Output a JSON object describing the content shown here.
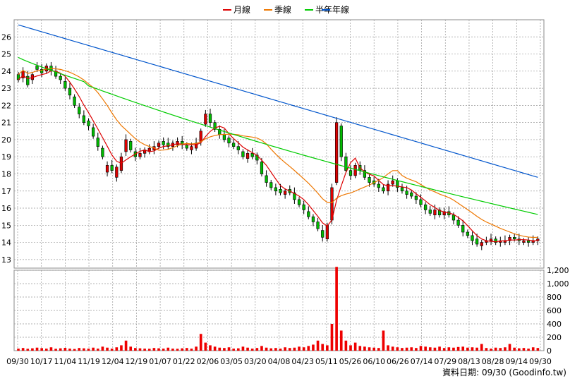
{
  "legend": {
    "items": [
      {
        "label": "月線",
        "color": "#dd0000"
      },
      {
        "label": "季線",
        "color": "#ee7700"
      },
      {
        "label": "半年",
        "color": "#00cc00"
      },
      {
        "label": "年線",
        "color": "#0055cc"
      }
    ]
  },
  "source_label": "資料日期: 09/30  (Goodinfo.tw)",
  "chart_data": {
    "type": "candlestick+volume",
    "x_labels": [
      "09/30",
      "10/17",
      "11/04",
      "11/19",
      "12/04",
      "12/19",
      "01/07",
      "01/22",
      "02/06",
      "03/05",
      "03/20",
      "04/08",
      "04/23",
      "05/11",
      "05/26",
      "06/10",
      "06/26",
      "07/14",
      "07/29",
      "08/13",
      "08/28",
      "09/14",
      "09/30"
    ],
    "price_ticks": [
      13,
      14,
      15,
      16,
      17,
      18,
      19,
      20,
      21,
      22,
      23,
      24,
      25,
      26
    ],
    "price_range": [
      12.5,
      27.0
    ],
    "volume_ticks": [
      "0",
      "200",
      "400",
      "600",
      "800",
      "1,000",
      "1,200"
    ],
    "volume_range": [
      0,
      1200
    ],
    "close": [
      23.5,
      24.0,
      23.2,
      23.8,
      24.1,
      23.9,
      24.3,
      24.0,
      23.7,
      23.5,
      23.0,
      22.6,
      22.0,
      21.5,
      21.0,
      20.8,
      20.2,
      19.6,
      19.0,
      18.5,
      18.2,
      18.4,
      19.0,
      20.0,
      19.4,
      19.0,
      19.2,
      19.4,
      19.5,
      19.6,
      19.8,
      19.7,
      19.6,
      19.8,
      19.9,
      19.7,
      19.5,
      19.6,
      19.8,
      20.5,
      21.5,
      21.0,
      20.6,
      20.3,
      20.0,
      19.8,
      19.6,
      19.4,
      19.0,
      19.2,
      19.0,
      18.8,
      18.0,
      17.5,
      17.2,
      17.0,
      16.9,
      17.0,
      16.9,
      16.5,
      16.2,
      15.9,
      15.5,
      15.2,
      14.8,
      14.3,
      15.0,
      17.2,
      21.0,
      19.0,
      18.2,
      17.9,
      18.5,
      18.2,
      17.8,
      17.5,
      17.4,
      17.2,
      17.0,
      17.4,
      17.6,
      17.2,
      17.0,
      16.8,
      16.7,
      16.5,
      16.2,
      15.9,
      15.7,
      15.9,
      15.6,
      15.8,
      15.6,
      15.3,
      15.0,
      14.6,
      14.4,
      14.1,
      13.9,
      14.0,
      14.1,
      14.2,
      14.0,
      14.1,
      14.1,
      14.3,
      14.2,
      14.1,
      14.1,
      14.0,
      14.1,
      14.2
    ],
    "open_offset": [
      0.3,
      -0.4,
      0.5,
      -0.3,
      0.2,
      0.2,
      -0.3,
      0.3,
      0.3,
      0.2,
      0.4,
      0.4,
      0.5,
      0.4,
      0.4,
      0.3,
      0.5,
      0.5,
      0.5,
      -0.4,
      0.3,
      -0.6,
      -0.8,
      -0.7,
      0.5,
      0.3,
      -0.2,
      -0.2,
      -0.2,
      -0.2,
      -0.2,
      0.2,
      0.2,
      -0.2,
      -0.2,
      0.2,
      0.2,
      -0.2,
      -0.3,
      -0.6,
      -0.6,
      0.5,
      0.4,
      0.3,
      0.3,
      0.3,
      0.2,
      0.2,
      0.3,
      -0.3,
      0.2,
      0.3,
      0.7,
      0.4,
      0.3,
      0.2,
      0.2,
      -0.2,
      0.2,
      0.4,
      0.3,
      0.3,
      0.3,
      0.3,
      0.4,
      0.4,
      -0.8,
      -1.9,
      -3.5,
      1.8,
      0.8,
      0.3,
      -0.6,
      0.3,
      0.4,
      0.3,
      0.2,
      0.2,
      0.2,
      -0.4,
      -0.2,
      0.4,
      0.2,
      0.2,
      0.2,
      0.2,
      0.3,
      0.3,
      0.2,
      -0.3,
      0.3,
      -0.2,
      0.2,
      0.3,
      0.3,
      0.4,
      0.2,
      0.3,
      0.3,
      -0.2,
      -0.1,
      -0.1,
      0.2,
      -0.1,
      -0.1,
      -0.2,
      0.1,
      0.1,
      -0.1,
      0.1,
      -0.1,
      -0.1
    ],
    "volume": [
      30,
      40,
      28,
      35,
      45,
      38,
      30,
      50,
      28,
      35,
      42,
      30,
      25,
      40,
      35,
      30,
      45,
      30,
      60,
      45,
      30,
      50,
      80,
      150,
      60,
      40,
      35,
      30,
      28,
      40,
      35,
      30,
      45,
      30,
      28,
      35,
      40,
      30,
      60,
      250,
      120,
      80,
      60,
      45,
      40,
      50,
      30,
      35,
      60,
      45,
      30,
      40,
      70,
      45,
      35,
      40,
      30,
      50,
      40,
      45,
      60,
      50,
      70,
      90,
      150,
      100,
      80,
      400,
      1250,
      300,
      150,
      80,
      120,
      70,
      60,
      50,
      45,
      40,
      300,
      80,
      60,
      50,
      40,
      45,
      50,
      40,
      70,
      60,
      50,
      45,
      60,
      40,
      50,
      45,
      55,
      60,
      45,
      50,
      45,
      100,
      40,
      30,
      45,
      40,
      50,
      100,
      45,
      35,
      40,
      30,
      50,
      40
    ]
  }
}
